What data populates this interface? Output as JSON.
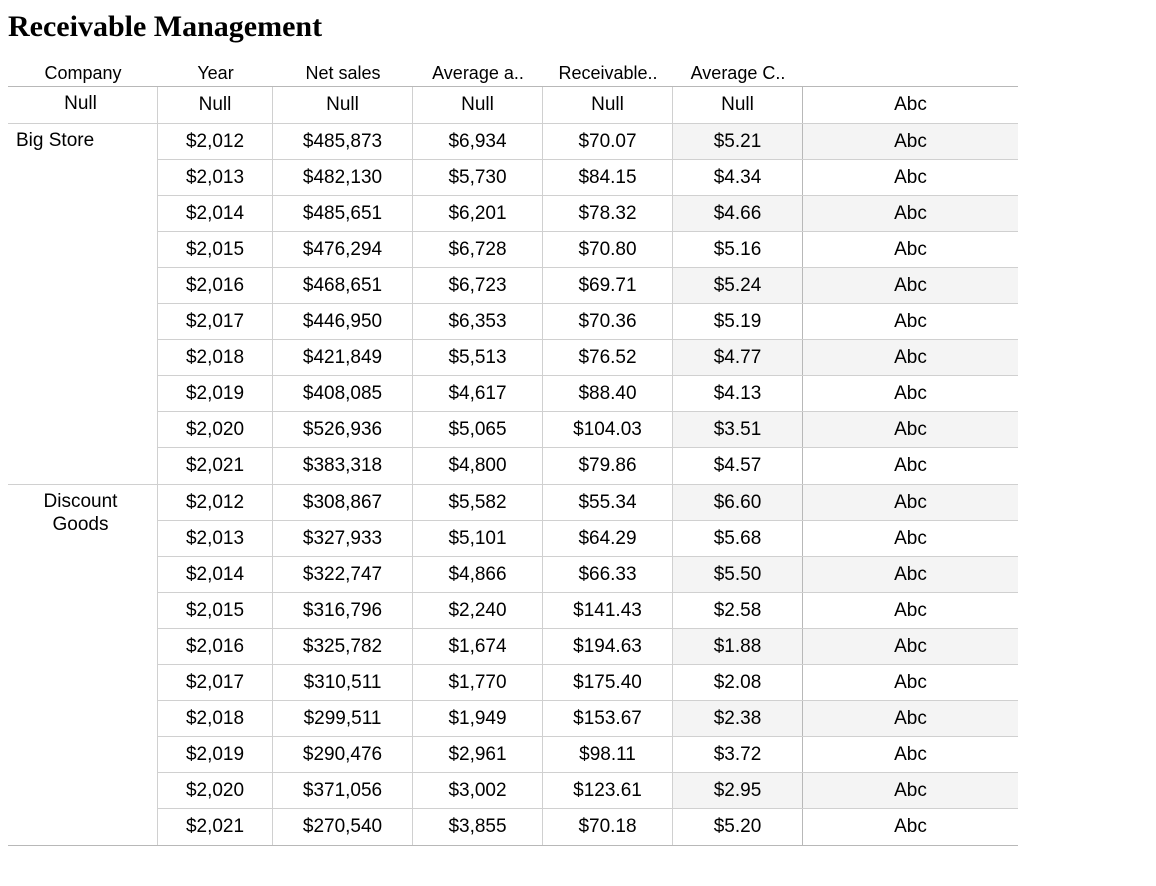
{
  "title": "Receivable Management",
  "headers": {
    "company": "Company",
    "year": "Year",
    "net_sales": "Net sales",
    "avg_a": "Average a..",
    "receivable": "Receivable..",
    "avg_c": "Average C.."
  },
  "abc_label": "Abc",
  "colors": {
    "shaded_bg": "#f4f4f4",
    "border": "#d0d0d0",
    "outer_border": "#b8b8b8"
  },
  "groups": [
    {
      "company": "Null",
      "rows": [
        {
          "year": "Null",
          "net_sales": "Null",
          "avg_a": "Null",
          "receivable": "Null",
          "avg_c": "Null",
          "shaded": false
        }
      ]
    },
    {
      "company": "Big Store",
      "rows": [
        {
          "year": "$2,012",
          "net_sales": "$485,873",
          "avg_a": "$6,934",
          "receivable": "$70.07",
          "avg_c": "$5.21",
          "shaded": true
        },
        {
          "year": "$2,013",
          "net_sales": "$482,130",
          "avg_a": "$5,730",
          "receivable": "$84.15",
          "avg_c": "$4.34",
          "shaded": false
        },
        {
          "year": "$2,014",
          "net_sales": "$485,651",
          "avg_a": "$6,201",
          "receivable": "$78.32",
          "avg_c": "$4.66",
          "shaded": true
        },
        {
          "year": "$2,015",
          "net_sales": "$476,294",
          "avg_a": "$6,728",
          "receivable": "$70.80",
          "avg_c": "$5.16",
          "shaded": false
        },
        {
          "year": "$2,016",
          "net_sales": "$468,651",
          "avg_a": "$6,723",
          "receivable": "$69.71",
          "avg_c": "$5.24",
          "shaded": true
        },
        {
          "year": "$2,017",
          "net_sales": "$446,950",
          "avg_a": "$6,353",
          "receivable": "$70.36",
          "avg_c": "$5.19",
          "shaded": false
        },
        {
          "year": "$2,018",
          "net_sales": "$421,849",
          "avg_a": "$5,513",
          "receivable": "$76.52",
          "avg_c": "$4.77",
          "shaded": true
        },
        {
          "year": "$2,019",
          "net_sales": "$408,085",
          "avg_a": "$4,617",
          "receivable": "$88.40",
          "avg_c": "$4.13",
          "shaded": false
        },
        {
          "year": "$2,020",
          "net_sales": "$526,936",
          "avg_a": "$5,065",
          "receivable": "$104.03",
          "avg_c": "$3.51",
          "shaded": true
        },
        {
          "year": "$2,021",
          "net_sales": "$383,318",
          "avg_a": "$4,800",
          "receivable": "$79.86",
          "avg_c": "$4.57",
          "shaded": false
        }
      ]
    },
    {
      "company": "Discount Goods",
      "rows": [
        {
          "year": "$2,012",
          "net_sales": "$308,867",
          "avg_a": "$5,582",
          "receivable": "$55.34",
          "avg_c": "$6.60",
          "shaded": true
        },
        {
          "year": "$2,013",
          "net_sales": "$327,933",
          "avg_a": "$5,101",
          "receivable": "$64.29",
          "avg_c": "$5.68",
          "shaded": false
        },
        {
          "year": "$2,014",
          "net_sales": "$322,747",
          "avg_a": "$4,866",
          "receivable": "$66.33",
          "avg_c": "$5.50",
          "shaded": true
        },
        {
          "year": "$2,015",
          "net_sales": "$316,796",
          "avg_a": "$2,240",
          "receivable": "$141.43",
          "avg_c": "$2.58",
          "shaded": false
        },
        {
          "year": "$2,016",
          "net_sales": "$325,782",
          "avg_a": "$1,674",
          "receivable": "$194.63",
          "avg_c": "$1.88",
          "shaded": true
        },
        {
          "year": "$2,017",
          "net_sales": "$310,511",
          "avg_a": "$1,770",
          "receivable": "$175.40",
          "avg_c": "$2.08",
          "shaded": false
        },
        {
          "year": "$2,018",
          "net_sales": "$299,511",
          "avg_a": "$1,949",
          "receivable": "$153.67",
          "avg_c": "$2.38",
          "shaded": true
        },
        {
          "year": "$2,019",
          "net_sales": "$290,476",
          "avg_a": "$2,961",
          "receivable": "$98.11",
          "avg_c": "$3.72",
          "shaded": false
        },
        {
          "year": "$2,020",
          "net_sales": "$371,056",
          "avg_a": "$3,002",
          "receivable": "$123.61",
          "avg_c": "$2.95",
          "shaded": true
        },
        {
          "year": "$2,021",
          "net_sales": "$270,540",
          "avg_a": "$3,855",
          "receivable": "$70.18",
          "avg_c": "$5.20",
          "shaded": false
        }
      ]
    }
  ]
}
